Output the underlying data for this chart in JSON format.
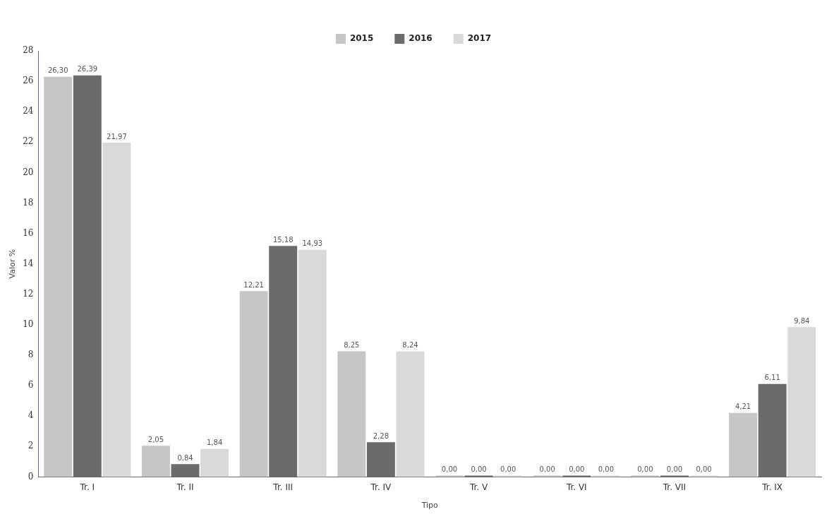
{
  "chart_data": {
    "type": "bar",
    "xlabel": "Tipo",
    "ylabel": "Valor %",
    "categories": [
      "Tr. I",
      "Tr. II",
      "Tr. III",
      "Tr. IV",
      "Tr. V",
      "Tr. VI",
      "Tr. VII",
      "Tr. IX"
    ],
    "series": [
      {
        "name": "2015",
        "color": "#c6c6c6",
        "values": [
          26.3,
          2.05,
          12.21,
          8.25,
          0,
          0,
          0,
          4.21
        ],
        "value_labels": [
          "26,30",
          "2,05",
          "12,21",
          "8,25",
          "0,00",
          "0,00",
          "0,00",
          "4,21"
        ]
      },
      {
        "name": "2016",
        "color": "#6b6b6b",
        "values": [
          26.39,
          0.84,
          15.18,
          2.28,
          0,
          0,
          0,
          6.11
        ],
        "value_labels": [
          "26,39",
          "0,84",
          "15,18",
          "2,28",
          "0,00",
          "0,00",
          "0,00",
          "6,11"
        ]
      },
      {
        "name": "2017",
        "color": "#d9d9d9",
        "values": [
          21.97,
          1.84,
          14.93,
          8.24,
          0,
          0,
          0,
          9.84
        ],
        "value_labels": [
          "21,97",
          "1,84",
          "14,93",
          "8,24",
          "0,00",
          "0,00",
          "0,00",
          "9,84"
        ]
      }
    ],
    "ylim": [
      0,
      28
    ],
    "yticks": [
      0,
      2,
      4,
      6,
      8,
      10,
      12,
      14,
      16,
      18,
      20,
      22,
      24,
      26,
      28
    ],
    "grid": false,
    "legend": "top"
  }
}
